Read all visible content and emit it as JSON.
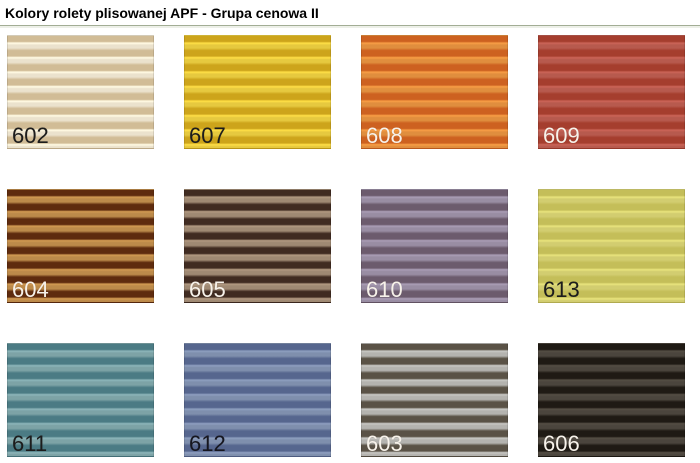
{
  "page": {
    "title": "Kolory rolety plisowanej APF - Grupa cenowa II"
  },
  "colors": {
    "background": "#ffffff",
    "title_text": "#000000",
    "divider": "#a2ad95"
  },
  "swatches": [
    {
      "code": "602",
      "label_color": "#1c1c1c",
      "stripe_dark": "#d1bc96",
      "stripe_light": "#ebe2cd"
    },
    {
      "code": "607",
      "label_color": "#1c1c1c",
      "stripe_dark": "#cda41b",
      "stripe_light": "#e6c93f"
    },
    {
      "code": "608",
      "label_color": "#f7f2ea",
      "stripe_dark": "#cd6120",
      "stripe_light": "#e08e3e"
    },
    {
      "code": "609",
      "label_color": "#f7f2ea",
      "stripe_dark": "#a53e2e",
      "stripe_light": "#b75a4e"
    },
    {
      "code": "604",
      "label_color": "#f7f2ea",
      "stripe_dark": "#5e2b0e",
      "stripe_light": "#bc8a4a"
    },
    {
      "code": "605",
      "label_color": "#f7f2ea",
      "stripe_dark": "#402b21",
      "stripe_light": "#9f8973"
    },
    {
      "code": "610",
      "label_color": "#f7f2ea",
      "stripe_dark": "#6c5b6d",
      "stripe_light": "#998da3"
    },
    {
      "code": "613",
      "label_color": "#1c1c1c",
      "stripe_dark": "#c4be59",
      "stripe_light": "#d2cd70"
    },
    {
      "code": "611",
      "label_color": "#1c1c1c",
      "stripe_dark": "#4b7b84",
      "stripe_light": "#7da3a6"
    },
    {
      "code": "612",
      "label_color": "#16161f",
      "stripe_dark": "#56668e",
      "stripe_light": "#7f8fad"
    },
    {
      "code": "603",
      "label_color": "#f7f2ea",
      "stripe_dark": "#5a5246",
      "stripe_light": "#b4b3af"
    },
    {
      "code": "606",
      "label_color": "#f7f2ea",
      "stripe_dark": "#1f1a14",
      "stripe_light": "#4b453d"
    }
  ]
}
